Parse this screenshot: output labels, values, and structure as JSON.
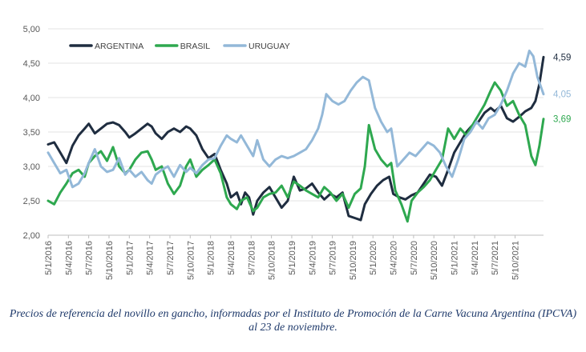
{
  "chart_data": {
    "type": "line",
    "ylim": [
      2.0,
      5.0
    ],
    "yticks": [
      "5,00",
      "4,50",
      "4,00",
      "3,50",
      "3,00",
      "2,50",
      "2,00"
    ],
    "ytick_values": [
      5.0,
      4.5,
      4.0,
      3.5,
      3.0,
      2.5,
      2.0
    ],
    "xticks": [
      "5/1/2016",
      "5/4/2016",
      "5/7/2016",
      "5/10/2016",
      "5/1/2017",
      "5/4/2017",
      "5/7/2017",
      "5/10/2017",
      "5/1/2018",
      "5/4/2018",
      "5/7/2018",
      "5/10/2018",
      "5/1/2019",
      "5/4/2019",
      "5/7/2019",
      "5/10/2019",
      "5/1/2020",
      "5/4/2020",
      "5/7/2020",
      "5/10/2020",
      "5/1/2021",
      "5/4/2021",
      "5/7/2021",
      "5/10/2021"
    ],
    "grid": "horizontal",
    "legend_position": "top-left",
    "series": [
      {
        "name": "ARGENTINA",
        "color": "#1f2d40",
        "end_label": "4,59",
        "points": [
          [
            0,
            3.32
          ],
          [
            0.3,
            3.35
          ],
          [
            0.6,
            3.2
          ],
          [
            0.9,
            3.05
          ],
          [
            1.2,
            3.3
          ],
          [
            1.5,
            3.45
          ],
          [
            1.8,
            3.55
          ],
          [
            2.0,
            3.62
          ],
          [
            2.3,
            3.48
          ],
          [
            2.6,
            3.55
          ],
          [
            2.9,
            3.62
          ],
          [
            3.2,
            3.64
          ],
          [
            3.5,
            3.6
          ],
          [
            3.8,
            3.5
          ],
          [
            4.0,
            3.42
          ],
          [
            4.3,
            3.48
          ],
          [
            4.6,
            3.55
          ],
          [
            4.9,
            3.62
          ],
          [
            5.1,
            3.58
          ],
          [
            5.3,
            3.48
          ],
          [
            5.6,
            3.4
          ],
          [
            5.9,
            3.5
          ],
          [
            6.2,
            3.55
          ],
          [
            6.5,
            3.5
          ],
          [
            6.8,
            3.58
          ],
          [
            7.0,
            3.55
          ],
          [
            7.3,
            3.45
          ],
          [
            7.6,
            3.25
          ],
          [
            7.9,
            3.12
          ],
          [
            8.2,
            3.18
          ],
          [
            8.5,
            2.95
          ],
          [
            8.8,
            2.75
          ],
          [
            9.0,
            2.55
          ],
          [
            9.3,
            2.62
          ],
          [
            9.5,
            2.45
          ],
          [
            9.7,
            2.62
          ],
          [
            9.9,
            2.55
          ],
          [
            10.1,
            2.3
          ],
          [
            10.3,
            2.5
          ],
          [
            10.6,
            2.62
          ],
          [
            10.9,
            2.7
          ],
          [
            11.2,
            2.55
          ],
          [
            11.5,
            2.4
          ],
          [
            11.8,
            2.5
          ],
          [
            12.1,
            2.85
          ],
          [
            12.4,
            2.65
          ],
          [
            12.7,
            2.68
          ],
          [
            13.0,
            2.75
          ],
          [
            13.3,
            2.62
          ],
          [
            13.6,
            2.52
          ],
          [
            13.9,
            2.6
          ],
          [
            14.2,
            2.55
          ],
          [
            14.5,
            2.62
          ],
          [
            14.8,
            2.28
          ],
          [
            15.1,
            2.25
          ],
          [
            15.4,
            2.22
          ],
          [
            15.6,
            2.45
          ],
          [
            15.9,
            2.6
          ],
          [
            16.2,
            2.72
          ],
          [
            16.5,
            2.8
          ],
          [
            16.8,
            2.85
          ],
          [
            17.0,
            2.6
          ],
          [
            17.3,
            2.55
          ],
          [
            17.6,
            2.52
          ],
          [
            17.9,
            2.58
          ],
          [
            18.2,
            2.62
          ],
          [
            18.5,
            2.75
          ],
          [
            18.8,
            2.88
          ],
          [
            19.1,
            2.85
          ],
          [
            19.4,
            2.72
          ],
          [
            19.7,
            2.95
          ],
          [
            20.0,
            3.2
          ],
          [
            20.3,
            3.35
          ],
          [
            20.6,
            3.5
          ],
          [
            20.9,
            3.6
          ],
          [
            21.2,
            3.65
          ],
          [
            21.5,
            3.78
          ],
          [
            21.8,
            3.85
          ],
          [
            22.0,
            3.8
          ],
          [
            22.3,
            3.88
          ],
          [
            22.6,
            3.7
          ],
          [
            22.9,
            3.65
          ],
          [
            23.2,
            3.72
          ],
          [
            23.5,
            3.8
          ],
          [
            23.8,
            3.85
          ],
          [
            24.0,
            3.95
          ],
          [
            24.2,
            4.2
          ],
          [
            24.4,
            4.59
          ]
        ]
      },
      {
        "name": "BRASIL",
        "color": "#2ea84f",
        "end_label": "3,69",
        "points": [
          [
            0,
            2.5
          ],
          [
            0.3,
            2.45
          ],
          [
            0.6,
            2.62
          ],
          [
            0.9,
            2.75
          ],
          [
            1.2,
            2.9
          ],
          [
            1.5,
            2.95
          ],
          [
            1.8,
            2.85
          ],
          [
            2.0,
            3.05
          ],
          [
            2.3,
            3.15
          ],
          [
            2.6,
            3.22
          ],
          [
            2.9,
            3.08
          ],
          [
            3.2,
            3.28
          ],
          [
            3.5,
            3.0
          ],
          [
            3.8,
            2.9
          ],
          [
            4.0,
            2.95
          ],
          [
            4.3,
            3.1
          ],
          [
            4.6,
            3.2
          ],
          [
            4.9,
            3.22
          ],
          [
            5.1,
            3.1
          ],
          [
            5.3,
            2.95
          ],
          [
            5.6,
            3.0
          ],
          [
            5.9,
            2.75
          ],
          [
            6.2,
            2.6
          ],
          [
            6.5,
            2.72
          ],
          [
            6.8,
            3.0
          ],
          [
            7.0,
            3.1
          ],
          [
            7.3,
            2.85
          ],
          [
            7.6,
            2.95
          ],
          [
            7.9,
            3.02
          ],
          [
            8.2,
            3.1
          ],
          [
            8.5,
            2.9
          ],
          [
            8.8,
            2.55
          ],
          [
            9.0,
            2.45
          ],
          [
            9.3,
            2.38
          ],
          [
            9.5,
            2.5
          ],
          [
            9.8,
            2.55
          ],
          [
            10.1,
            2.35
          ],
          [
            10.3,
            2.4
          ],
          [
            10.6,
            2.55
          ],
          [
            10.9,
            2.6
          ],
          [
            11.2,
            2.62
          ],
          [
            11.5,
            2.72
          ],
          [
            11.8,
            2.55
          ],
          [
            12.1,
            2.78
          ],
          [
            12.4,
            2.72
          ],
          [
            12.7,
            2.65
          ],
          [
            13.0,
            2.6
          ],
          [
            13.3,
            2.55
          ],
          [
            13.6,
            2.7
          ],
          [
            13.9,
            2.62
          ],
          [
            14.2,
            2.5
          ],
          [
            14.5,
            2.6
          ],
          [
            14.8,
            2.4
          ],
          [
            15.1,
            2.6
          ],
          [
            15.4,
            2.68
          ],
          [
            15.6,
            3.0
          ],
          [
            15.8,
            3.6
          ],
          [
            16.1,
            3.25
          ],
          [
            16.4,
            3.1
          ],
          [
            16.7,
            3.0
          ],
          [
            16.9,
            3.05
          ],
          [
            17.1,
            2.65
          ],
          [
            17.4,
            2.45
          ],
          [
            17.7,
            2.2
          ],
          [
            17.9,
            2.5
          ],
          [
            18.2,
            2.62
          ],
          [
            18.5,
            2.7
          ],
          [
            18.8,
            2.8
          ],
          [
            19.1,
            2.95
          ],
          [
            19.4,
            3.1
          ],
          [
            19.7,
            3.55
          ],
          [
            20.0,
            3.4
          ],
          [
            20.3,
            3.55
          ],
          [
            20.6,
            3.45
          ],
          [
            20.9,
            3.6
          ],
          [
            21.2,
            3.75
          ],
          [
            21.5,
            3.9
          ],
          [
            21.8,
            4.1
          ],
          [
            22.0,
            4.22
          ],
          [
            22.3,
            4.1
          ],
          [
            22.6,
            3.88
          ],
          [
            22.9,
            3.95
          ],
          [
            23.2,
            3.75
          ],
          [
            23.5,
            3.6
          ],
          [
            23.8,
            3.15
          ],
          [
            24.0,
            3.02
          ],
          [
            24.2,
            3.3
          ],
          [
            24.4,
            3.69
          ]
        ]
      },
      {
        "name": "URUGUAY",
        "color": "#93b8d8",
        "end_label": "4,05",
        "points": [
          [
            0,
            3.2
          ],
          [
            0.3,
            3.05
          ],
          [
            0.6,
            2.9
          ],
          [
            0.9,
            2.95
          ],
          [
            1.2,
            2.7
          ],
          [
            1.5,
            2.75
          ],
          [
            1.8,
            2.9
          ],
          [
            2.0,
            3.05
          ],
          [
            2.3,
            3.25
          ],
          [
            2.6,
            3.0
          ],
          [
            2.9,
            2.92
          ],
          [
            3.2,
            2.95
          ],
          [
            3.5,
            3.12
          ],
          [
            3.8,
            2.88
          ],
          [
            4.0,
            2.95
          ],
          [
            4.3,
            2.85
          ],
          [
            4.6,
            2.92
          ],
          [
            4.9,
            2.8
          ],
          [
            5.1,
            2.75
          ],
          [
            5.3,
            2.88
          ],
          [
            5.6,
            2.95
          ],
          [
            5.9,
            3.0
          ],
          [
            6.2,
            2.85
          ],
          [
            6.5,
            3.02
          ],
          [
            6.8,
            2.92
          ],
          [
            7.0,
            2.98
          ],
          [
            7.3,
            2.9
          ],
          [
            7.6,
            3.02
          ],
          [
            7.9,
            3.1
          ],
          [
            8.2,
            3.12
          ],
          [
            8.5,
            3.3
          ],
          [
            8.8,
            3.45
          ],
          [
            9.0,
            3.4
          ],
          [
            9.3,
            3.35
          ],
          [
            9.5,
            3.45
          ],
          [
            9.8,
            3.3
          ],
          [
            10.1,
            3.15
          ],
          [
            10.3,
            3.38
          ],
          [
            10.6,
            3.1
          ],
          [
            10.9,
            3.0
          ],
          [
            11.2,
            3.1
          ],
          [
            11.5,
            3.15
          ],
          [
            11.8,
            3.12
          ],
          [
            12.1,
            3.15
          ],
          [
            12.4,
            3.2
          ],
          [
            12.7,
            3.25
          ],
          [
            13.0,
            3.38
          ],
          [
            13.3,
            3.55
          ],
          [
            13.5,
            3.75
          ],
          [
            13.7,
            4.05
          ],
          [
            14.0,
            3.95
          ],
          [
            14.3,
            3.9
          ],
          [
            14.6,
            3.95
          ],
          [
            14.9,
            4.1
          ],
          [
            15.2,
            4.22
          ],
          [
            15.5,
            4.3
          ],
          [
            15.8,
            4.25
          ],
          [
            16.1,
            3.85
          ],
          [
            16.4,
            3.65
          ],
          [
            16.7,
            3.5
          ],
          [
            16.9,
            3.55
          ],
          [
            17.2,
            3.0
          ],
          [
            17.5,
            3.1
          ],
          [
            17.8,
            3.2
          ],
          [
            18.1,
            3.15
          ],
          [
            18.4,
            3.25
          ],
          [
            18.7,
            3.35
          ],
          [
            19.0,
            3.3
          ],
          [
            19.3,
            3.2
          ],
          [
            19.6,
            3.0
          ],
          [
            19.9,
            2.85
          ],
          [
            20.2,
            3.1
          ],
          [
            20.5,
            3.4
          ],
          [
            20.8,
            3.5
          ],
          [
            21.1,
            3.65
          ],
          [
            21.4,
            3.55
          ],
          [
            21.7,
            3.7
          ],
          [
            22.0,
            3.75
          ],
          [
            22.3,
            3.9
          ],
          [
            22.6,
            4.1
          ],
          [
            22.9,
            4.35
          ],
          [
            23.2,
            4.5
          ],
          [
            23.5,
            4.45
          ],
          [
            23.7,
            4.68
          ],
          [
            23.9,
            4.6
          ],
          [
            24.1,
            4.3
          ],
          [
            24.4,
            4.05
          ]
        ]
      }
    ]
  },
  "caption": "Precios de referencia del novillo en gancho, informadas por el Instituto de Promoción de la Carne Vacuna Argentina (IPCVA) al 23 de noviembre."
}
